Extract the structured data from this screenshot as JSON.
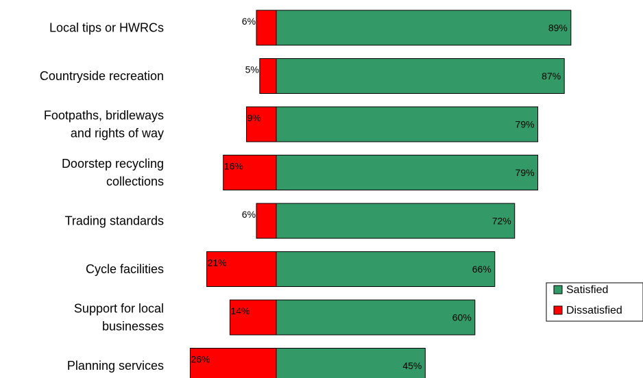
{
  "chart_data": {
    "type": "bar",
    "orientation": "horizontal-diverging",
    "categories": [
      [
        "Local tips or HWRCs"
      ],
      [
        "Countryside recreation"
      ],
      [
        "Footpaths, bridleways",
        "and rights of way"
      ],
      [
        "Doorstep recycling",
        "collections"
      ],
      [
        "Trading standards"
      ],
      [
        "Cycle facilities"
      ],
      [
        "Support for local",
        "businesses"
      ],
      [
        "Planning services"
      ]
    ],
    "series": [
      {
        "name": "Satisfied",
        "color": "#339966",
        "values": [
          89,
          87,
          79,
          79,
          72,
          66,
          60,
          45
        ],
        "labels": [
          "89%",
          "87%",
          "79%",
          "79%",
          "72%",
          "66%",
          "60%",
          "45%"
        ]
      },
      {
        "name": "Dissatisfied",
        "color": "#ff0000",
        "values": [
          6,
          5,
          9,
          16,
          6,
          21,
          14,
          26
        ],
        "labels": [
          "6%",
          "5%",
          "9%",
          "16%",
          "6%",
          "21%",
          "14%",
          "26%"
        ]
      }
    ],
    "legend": {
      "position": "right",
      "entries": [
        "Satisfied",
        "Dissatisfied"
      ]
    },
    "grid": false
  }
}
